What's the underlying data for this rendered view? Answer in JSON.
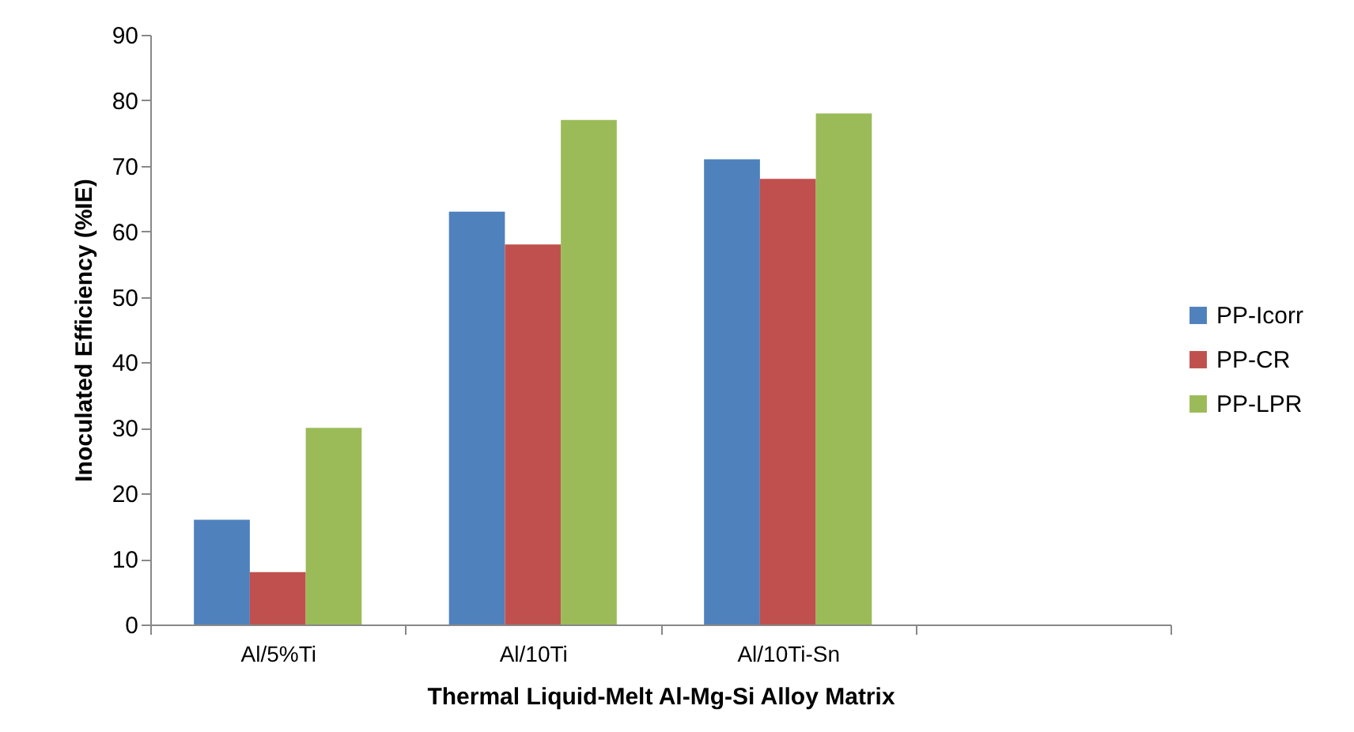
{
  "chart_data": {
    "type": "bar",
    "xlabel": "Thermal Liquid-Melt Al-Mg-Si Alloy Matrix",
    "ylabel": "Inoculated Efficiency (%IE)",
    "categories": [
      "Al/5%Ti",
      "Al/10Ti",
      "Al/10Ti-Sn",
      null
    ],
    "series": [
      {
        "name": "PP-Icorr",
        "color": "#4f81bd",
        "values": [
          16,
          63,
          71,
          null
        ]
      },
      {
        "name": "PP-CR",
        "color": "#c0504d",
        "values": [
          8,
          58,
          68,
          null
        ]
      },
      {
        "name": "PP-LPR",
        "color": "#9bbb59",
        "values": [
          30,
          77,
          78,
          null
        ]
      }
    ],
    "ylim": [
      0,
      90
    ],
    "yticks": [
      0,
      10,
      20,
      30,
      40,
      50,
      60,
      70,
      80,
      90
    ],
    "grid": false,
    "legend": "right"
  }
}
